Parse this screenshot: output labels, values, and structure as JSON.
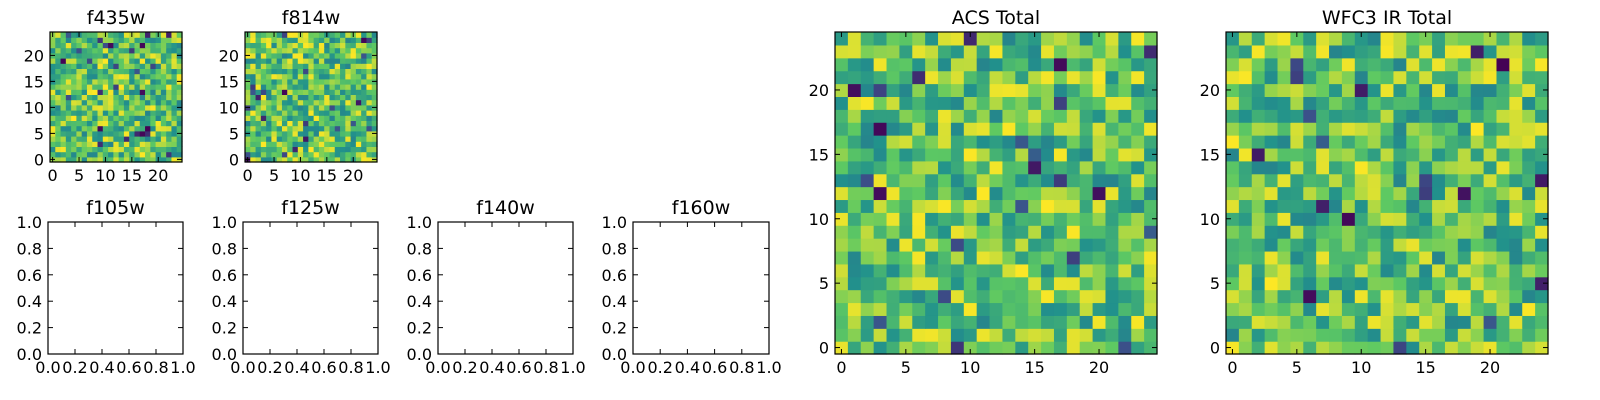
{
  "figure": {
    "colormap": [
      "#440154",
      "#3b528b",
      "#21918c",
      "#5ec962",
      "#fde725"
    ],
    "background": "#ffffff"
  },
  "chart_data": [
    {
      "type": "heatmap",
      "title": "f435w",
      "grid_size": [
        25,
        25
      ],
      "xlim": [
        -0.5,
        24.5
      ],
      "ylim": [
        -0.5,
        24.5
      ],
      "xticks": [
        0,
        5,
        10,
        15,
        20
      ],
      "yticks": [
        0,
        5,
        10,
        15,
        20
      ],
      "values": "random noise, mostly green-yellow with occasional dark pixels",
      "grid": false
    },
    {
      "type": "heatmap",
      "title": "f814w",
      "grid_size": [
        25,
        25
      ],
      "xlim": [
        -0.5,
        24.5
      ],
      "ylim": [
        -0.5,
        24.5
      ],
      "xticks": [
        0,
        5,
        10,
        15,
        20
      ],
      "yticks": [
        0,
        5,
        10,
        15,
        20
      ],
      "values": "random noise, mostly green-yellow with occasional dark pixels",
      "grid": false
    },
    {
      "type": "empty",
      "title": "f105w",
      "xlim": [
        0.0,
        1.0
      ],
      "ylim": [
        0.0,
        1.0
      ],
      "xticks": [
        "0.0",
        "0.2",
        "0.4",
        "0.6",
        "0.8",
        "1.0"
      ],
      "yticks": [
        "0.0",
        "0.2",
        "0.4",
        "0.6",
        "0.8",
        "1.0"
      ]
    },
    {
      "type": "empty",
      "title": "f125w",
      "xlim": [
        0.0,
        1.0
      ],
      "ylim": [
        0.0,
        1.0
      ],
      "xticks": [
        "0.0",
        "0.2",
        "0.4",
        "0.6",
        "0.8",
        "1.0"
      ],
      "yticks": [
        "0.0",
        "0.2",
        "0.4",
        "0.6",
        "0.8",
        "1.0"
      ]
    },
    {
      "type": "empty",
      "title": "f140w",
      "xlim": [
        0.0,
        1.0
      ],
      "ylim": [
        0.0,
        1.0
      ],
      "xticks": [
        "0.0",
        "0.2",
        "0.4",
        "0.6",
        "0.8",
        "1.0"
      ],
      "yticks": [
        "0.0",
        "0.2",
        "0.4",
        "0.6",
        "0.8",
        "1.0"
      ]
    },
    {
      "type": "empty",
      "title": "f160w",
      "xlim": [
        0.0,
        1.0
      ],
      "ylim": [
        0.0,
        1.0
      ],
      "xticks": [
        "0.0",
        "0.2",
        "0.4",
        "0.6",
        "0.8",
        "1.0"
      ],
      "yticks": [
        "0.0",
        "0.2",
        "0.4",
        "0.6",
        "0.8",
        "1.0"
      ]
    },
    {
      "type": "heatmap",
      "title": "ACS Total",
      "grid_size": [
        25,
        25
      ],
      "xlim": [
        -0.5,
        24.5
      ],
      "ylim": [
        -0.5,
        24.5
      ],
      "xticks": [
        0,
        5,
        10,
        15,
        20
      ],
      "yticks": [
        0,
        5,
        10,
        15,
        20
      ],
      "values": "random noise, mostly green-yellow with occasional dark pixels",
      "grid": false
    },
    {
      "type": "heatmap",
      "title": "WFC3 IR Total",
      "grid_size": [
        25,
        25
      ],
      "xlim": [
        -0.5,
        24.5
      ],
      "ylim": [
        -0.5,
        24.5
      ],
      "xticks": [
        0,
        5,
        10,
        15,
        20
      ],
      "yticks": [
        0,
        5,
        10,
        15,
        20
      ],
      "values": "random noise, mostly green-yellow with occasional dark pixels",
      "grid": false
    }
  ]
}
